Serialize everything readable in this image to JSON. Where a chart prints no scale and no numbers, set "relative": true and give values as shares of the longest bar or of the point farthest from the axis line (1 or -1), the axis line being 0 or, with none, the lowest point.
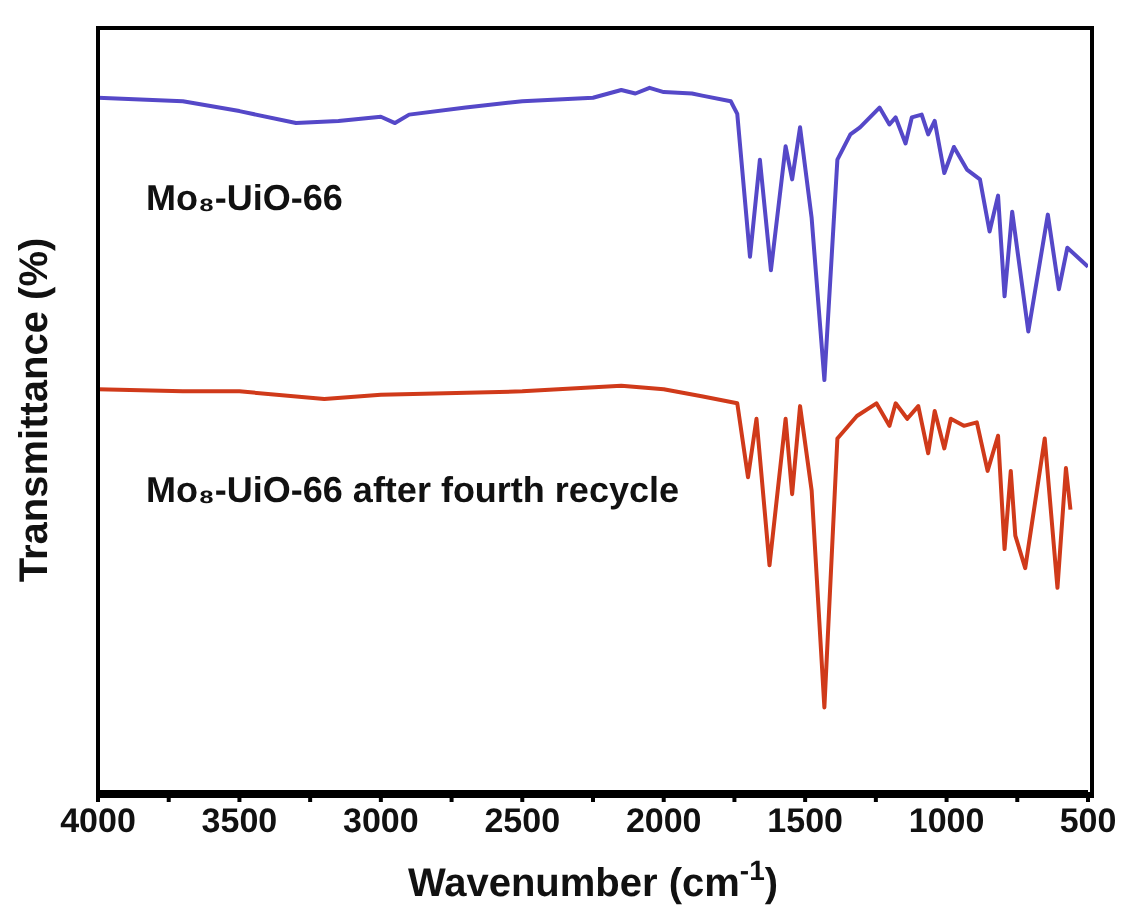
{
  "chart_data": {
    "type": "line",
    "relative": true,
    "xlabel": "Wavenumber (cm$^{-1}$)",
    "ylabel": "Transmittance (%)",
    "xlim": [
      4000,
      500
    ],
    "xticks": [
      4000,
      {
        "value": 3750,
        "label": null
      },
      3500,
      {
        "value": 3250,
        "label": null
      },
      3000,
      {
        "value": 2750,
        "label": null
      },
      2500,
      {
        "value": 2250,
        "label": null
      },
      2000,
      {
        "value": 1750,
        "label": null
      },
      1500,
      {
        "value": 1250,
        "label": null
      },
      1000,
      {
        "value": 750,
        "label": null
      },
      500
    ],
    "series": [
      {
        "name": "Mo₈-UiO-66",
        "color": "#5548c8",
        "x": [
          4000,
          3700,
          3500,
          3300,
          3150,
          3000,
          2950,
          2900,
          2700,
          2500,
          2250,
          2150,
          2100,
          2050,
          2000,
          1900,
          1864,
          1763,
          1740,
          1695,
          1660,
          1621,
          1569,
          1546,
          1518,
          1477,
          1432,
          1386,
          1340,
          1306,
          1237,
          1202,
          1180,
          1145,
          1123,
          1088,
          1065,
          1042,
          1008,
          974,
          928,
          882,
          848,
          818,
          795,
          768,
          711,
          642,
          603,
          573,
          500
        ],
        "values": [
          0.986,
          0.981,
          0.967,
          0.95,
          0.953,
          0.959,
          0.95,
          0.962,
          0.972,
          0.981,
          0.986,
          0.997,
          0.992,
          1.0,
          0.994,
          0.992,
          0.989,
          0.981,
          0.963,
          0.76,
          0.898,
          0.741,
          0.917,
          0.87,
          0.944,
          0.815,
          0.585,
          0.898,
          0.934,
          0.944,
          0.972,
          0.948,
          0.958,
          0.921,
          0.958,
          0.962,
          0.934,
          0.953,
          0.879,
          0.916,
          0.884,
          0.87,
          0.796,
          0.847,
          0.704,
          0.824,
          0.654,
          0.82,
          0.714,
          0.773,
          0.746
        ]
      },
      {
        "name": "Mo₈-UiO-66 after fourth recycle",
        "color": "#d03a1a",
        "x": [
          4000,
          3700,
          3500,
          3200,
          3000,
          2500,
          2150,
          2000,
          1866,
          1740,
          1702,
          1672,
          1626,
          1569,
          1546,
          1518,
          1477,
          1432,
          1386,
          1317,
          1248,
          1202,
          1180,
          1139,
          1100,
          1065,
          1042,
          1008,
          985,
          939,
          893,
          855,
          818,
          795,
          773,
          757,
          722,
          653,
          608,
          578,
          562
        ],
        "values": [
          0.572,
          0.569,
          0.569,
          0.558,
          0.564,
          0.569,
          0.577,
          0.572,
          0.562,
          0.552,
          0.447,
          0.53,
          0.322,
          0.53,
          0.423,
          0.548,
          0.428,
          0.12,
          0.502,
          0.534,
          0.552,
          0.52,
          0.552,
          0.53,
          0.548,
          0.481,
          0.541,
          0.488,
          0.53,
          0.52,
          0.525,
          0.456,
          0.506,
          0.345,
          0.456,
          0.364,
          0.318,
          0.502,
          0.29,
          0.46,
          0.401
        ]
      }
    ]
  }
}
